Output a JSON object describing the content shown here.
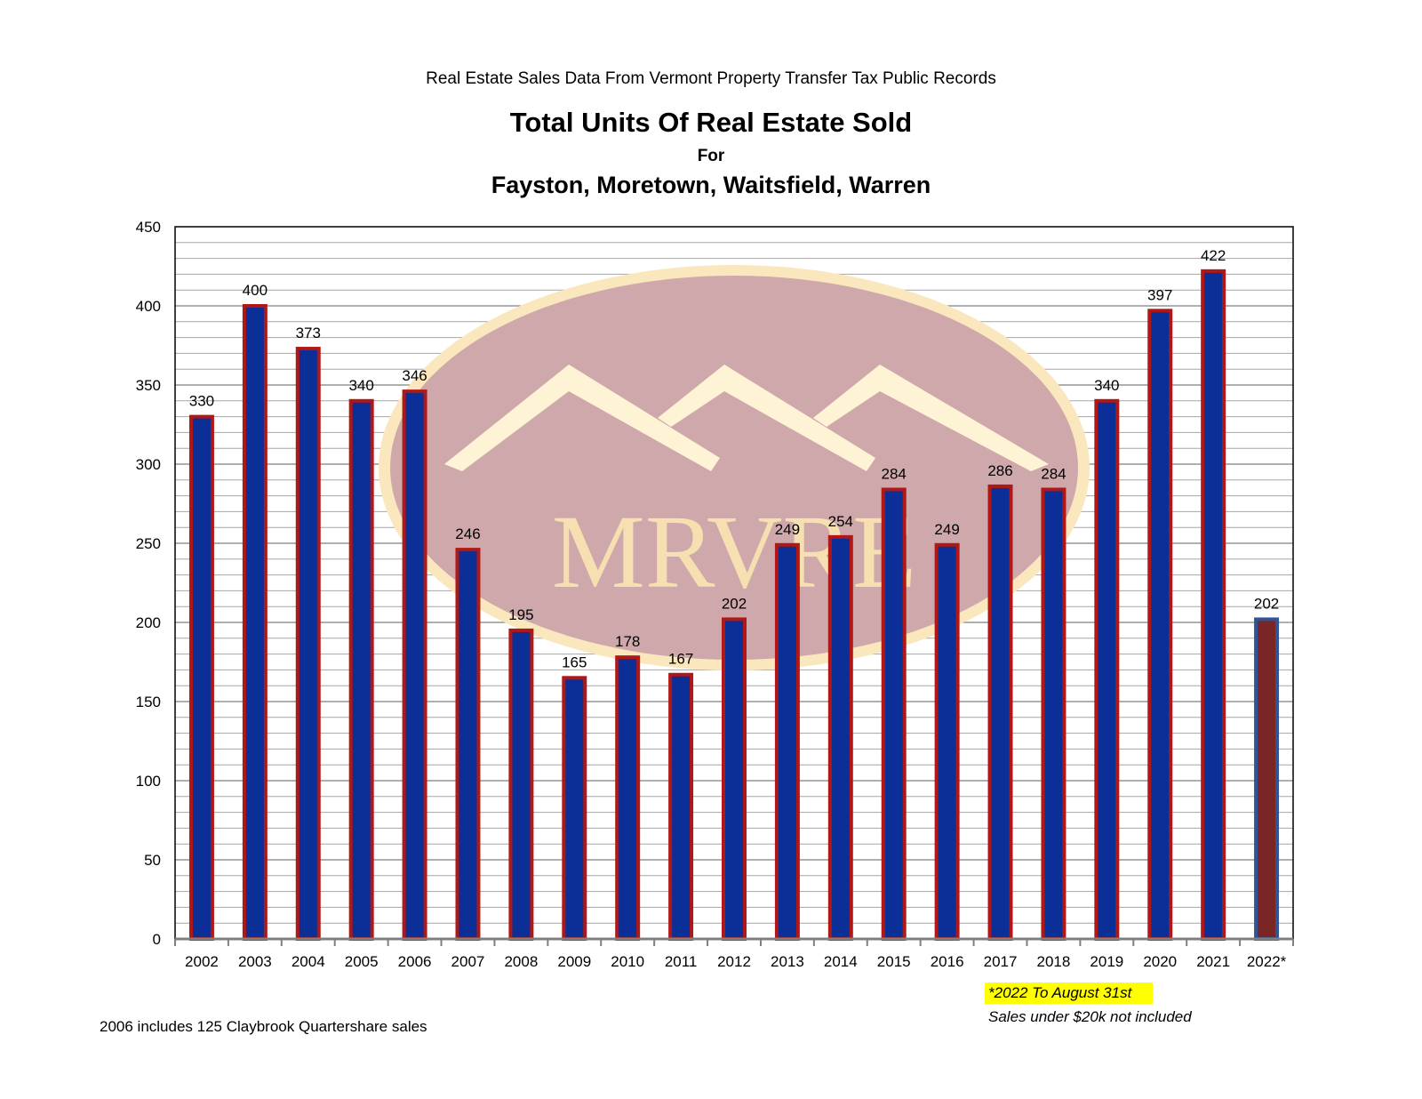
{
  "header": {
    "source": "Real Estate Sales Data From Vermont Property Transfer Tax Public Records",
    "title": "Total Units Of Real Estate Sold",
    "for_label": "For",
    "subtitle": "Fayston, Moretown, Waitsfield, Warren"
  },
  "watermark": {
    "text": "MRVRE"
  },
  "footnotes": {
    "note_2022": "*2022 To August 31st",
    "note_sales": "Sales under $20k not included",
    "note_2006": "2006 includes 125 Claybrook Quartershare sales"
  },
  "colors": {
    "bar_fill": "#0b2f96",
    "bar_border": "#b01717",
    "partial_bar_fill": "#7b2626",
    "partial_bar_border": "#2f5597",
    "gridline": "#a6a6a6",
    "watermark_oval": "#cfa8ac",
    "watermark_accent": "#fff3d6"
  },
  "chart_data": {
    "type": "bar",
    "categories": [
      "2002",
      "2003",
      "2004",
      "2005",
      "2006",
      "2007",
      "2008",
      "2009",
      "2010",
      "2011",
      "2012",
      "2013",
      "2014",
      "2015",
      "2016",
      "2017",
      "2018",
      "2019",
      "2020",
      "2021",
      "2022*"
    ],
    "values": [
      330,
      400,
      373,
      340,
      346,
      246,
      195,
      165,
      178,
      167,
      202,
      249,
      254,
      284,
      249,
      286,
      284,
      340,
      397,
      422,
      202
    ],
    "highlight_index": 20,
    "y_ticks": [
      0,
      50,
      100,
      150,
      200,
      250,
      300,
      350,
      400,
      450
    ],
    "ylim": [
      0,
      450
    ],
    "grid": true,
    "minor_grid_step": 10,
    "legend": "none"
  }
}
